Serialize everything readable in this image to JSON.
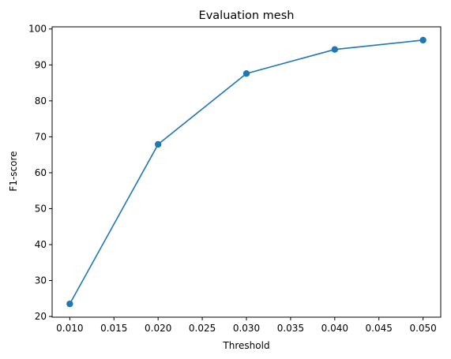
{
  "chart_data": {
    "type": "line",
    "title": "Evaluation mesh",
    "xlabel": "Threshold",
    "ylabel": "F1-score",
    "x": [
      0.01,
      0.02,
      0.03,
      0.04,
      0.05
    ],
    "series": [
      {
        "values": [
          23.5,
          67.9,
          87.6,
          94.3,
          96.9
        ]
      }
    ],
    "xlim": [
      0.008,
      0.052
    ],
    "ylim": [
      19.8,
      100.6
    ],
    "xticks": [
      0.01,
      0.015,
      0.02,
      0.025,
      0.03,
      0.035,
      0.04,
      0.045,
      0.05
    ],
    "xtick_labels": [
      "0.010",
      "0.015",
      "0.020",
      "0.025",
      "0.030",
      "0.035",
      "0.040",
      "0.045",
      "0.050"
    ],
    "yticks": [
      20,
      30,
      40,
      50,
      60,
      70,
      80,
      90,
      100
    ],
    "ytick_labels": [
      "20",
      "30",
      "40",
      "50",
      "60",
      "70",
      "80",
      "90",
      "100"
    ],
    "grid": false,
    "markers": true,
    "line_color": "#1f77b4"
  }
}
